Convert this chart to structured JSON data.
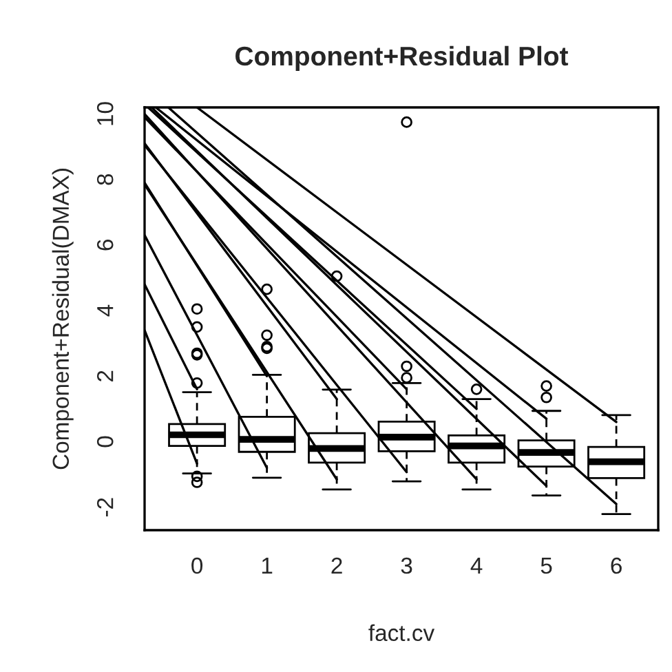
{
  "chart_data": {
    "type": "box",
    "title": "Component+Residual Plot",
    "xlabel": "fact.cv",
    "ylabel": "Component+Residual(DMAX)",
    "x": [
      0,
      1,
      2,
      3,
      4,
      5,
      6
    ],
    "boxes": [
      {
        "low": -0.97,
        "q1": -0.13,
        "median": 0.21,
        "q3": 0.54,
        "high": 1.51,
        "outliers": [
          -1.06,
          -1.24,
          1.79,
          2.65,
          2.7,
          3.5,
          4.05
        ]
      },
      {
        "low": -1.1,
        "q1": -0.31,
        "median": 0.07,
        "q3": 0.76,
        "high": 2.04,
        "outliers": [
          2.85,
          2.9,
          3.25,
          4.65
        ]
      },
      {
        "low": -1.46,
        "q1": -0.64,
        "median": -0.21,
        "q3": 0.26,
        "high": 1.59,
        "outliers": [
          5.05
        ]
      },
      {
        "low": -1.21,
        "q1": -0.29,
        "median": 0.14,
        "q3": 0.61,
        "high": 1.79,
        "outliers": [
          1.95,
          2.3,
          9.75
        ]
      },
      {
        "low": -1.46,
        "q1": -0.64,
        "median": -0.13,
        "q3": 0.19,
        "high": 1.3,
        "outliers": [
          1.6
        ]
      },
      {
        "low": -1.64,
        "q1": -0.76,
        "median": -0.33,
        "q3": 0.04,
        "high": 0.94,
        "outliers": [
          1.35,
          1.7
        ]
      },
      {
        "low": -2.21,
        "q1": -1.11,
        "median": -0.61,
        "q3": -0.16,
        "high": 0.81
      }
    ],
    "series": [
      {
        "type": "line",
        "color": "#000000",
        "x": [
          -0.75,
          0
        ],
        "values": [
          3.4,
          -0.67
        ]
      },
      {
        "type": "line",
        "color": "#000000",
        "x": [
          -0.75,
          0
        ],
        "values": [
          4.8,
          1.6
        ]
      },
      {
        "type": "line",
        "color": "#000000",
        "x": [
          -0.75,
          1
        ],
        "values": [
          6.3,
          -0.8
        ]
      },
      {
        "type": "line",
        "color": "#000000",
        "x": [
          -0.75,
          1
        ],
        "values": [
          7.9,
          2.0
        ]
      },
      {
        "type": "line",
        "color": "#000000",
        "x": [
          -0.75,
          2
        ],
        "values": [
          7.85,
          -1.15
        ]
      },
      {
        "type": "line",
        "color": "#000000",
        "x": [
          -0.75,
          2
        ],
        "values": [
          9.1,
          1.3
        ]
      },
      {
        "type": "line",
        "color": "#000000",
        "x": [
          -0.75,
          3
        ],
        "values": [
          9.05,
          -0.93
        ]
      },
      {
        "type": "line",
        "color": "#000000",
        "x": [
          -0.75,
          3
        ],
        "values": [
          9.9,
          1.6
        ]
      },
      {
        "type": "line",
        "color": "#000000",
        "x": [
          -0.75,
          4
        ],
        "values": [
          10.0,
          -1.15
        ]
      },
      {
        "type": "line",
        "color": "#000000",
        "x": [
          -0.7,
          4
        ],
        "values": [
          10.2,
          1.0
        ]
      },
      {
        "type": "line",
        "color": "#000000",
        "x": [
          -0.65,
          5
        ],
        "values": [
          10.2,
          -1.35
        ]
      },
      {
        "type": "line",
        "color": "#000000",
        "x": [
          -0.59,
          5
        ],
        "values": [
          10.2,
          0.7
        ]
      },
      {
        "type": "line",
        "color": "#000000",
        "x": [
          -0.41,
          6
        ],
        "values": [
          10.2,
          -1.9
        ]
      },
      {
        "type": "line",
        "color": "#000000",
        "x": [
          0.0,
          6
        ],
        "values": [
          10.2,
          0.6
        ]
      }
    ],
    "xlim": [
      -0.75,
      6.6
    ],
    "ylim": [
      -2.7,
      10.2
    ],
    "xticks": [
      0,
      1,
      2,
      3,
      4,
      5,
      6
    ],
    "yticks": [
      -2,
      0,
      2,
      4,
      6,
      8,
      10
    ],
    "grid": false
  }
}
